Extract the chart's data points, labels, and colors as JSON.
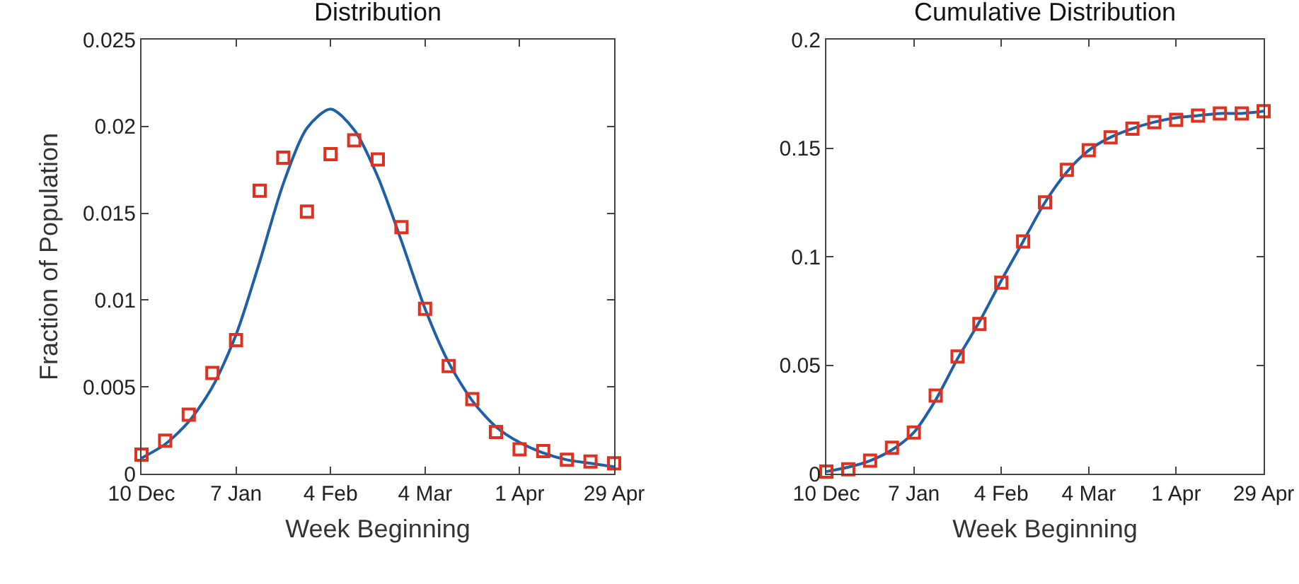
{
  "chart_data": [
    {
      "type": "line",
      "title": "Distribution",
      "xlabel": "Week Beginning",
      "ylabel": "Fraction of Population",
      "categories": [
        "10 Dec",
        null,
        null,
        null,
        "7 Jan",
        null,
        null,
        null,
        "4 Feb",
        null,
        null,
        null,
        "4 Mar",
        null,
        null,
        null,
        "1 Apr",
        null,
        null,
        null,
        "29 Apr"
      ],
      "ylim": [
        0,
        0.025
      ],
      "yticks": [
        0,
        0.005,
        0.01,
        0.015,
        0.02,
        0.025
      ],
      "grid": false,
      "series": [
        {
          "type": "line",
          "color": "#1f5fa8",
          "marker": "none",
          "line_style": "solid",
          "values": [
            0.0009,
            0.0017,
            0.003,
            0.005,
            0.008,
            0.0122,
            0.0167,
            0.0199,
            0.021,
            0.0198,
            0.0171,
            0.0134,
            0.0095,
            0.0064,
            0.0042,
            0.0027,
            0.0018,
            0.0012,
            0.0008,
            0.0006,
            0.0004
          ]
        },
        {
          "type": "scatter",
          "color": "#e03020",
          "marker": "square",
          "values": [
            0.0011,
            0.0019,
            0.0034,
            0.0058,
            0.0077,
            0.0163,
            0.0182,
            0.0151,
            0.0184,
            0.0192,
            0.0181,
            0.0142,
            0.0095,
            0.0062,
            0.0043,
            0.0024,
            0.0014,
            0.0013,
            0.0008,
            0.0007,
            0.0006
          ]
        }
      ]
    },
    {
      "type": "line",
      "title": "Cumulative Distribution",
      "xlabel": "Week Beginning",
      "categories": [
        "10 Dec",
        null,
        null,
        null,
        "7 Jan",
        null,
        null,
        null,
        "4 Feb",
        null,
        null,
        null,
        "4 Mar",
        null,
        null,
        null,
        "1 Apr",
        null,
        null,
        null,
        "29 Apr"
      ],
      "ylim": [
        0,
        0.2
      ],
      "yticks": [
        0,
        0.05,
        0.1,
        0.15,
        0.2
      ],
      "grid": false,
      "series": [
        {
          "type": "line",
          "color": "#1f5fa8",
          "marker": "none",
          "line_style": "solid",
          "values": [
            0.001,
            0.003,
            0.006,
            0.011,
            0.019,
            0.034,
            0.053,
            0.07,
            0.089,
            0.107,
            0.125,
            0.139,
            0.149,
            0.155,
            0.159,
            0.162,
            0.164,
            0.165,
            0.166,
            0.166,
            0.167
          ]
        },
        {
          "type": "scatter",
          "color": "#e03020",
          "marker": "square",
          "values": [
            0.001,
            0.002,
            0.006,
            0.012,
            0.019,
            0.036,
            0.054,
            0.069,
            0.088,
            0.107,
            0.125,
            0.14,
            0.149,
            0.155,
            0.159,
            0.162,
            0.163,
            0.165,
            0.166,
            0.166,
            0.167
          ]
        }
      ]
    }
  ]
}
